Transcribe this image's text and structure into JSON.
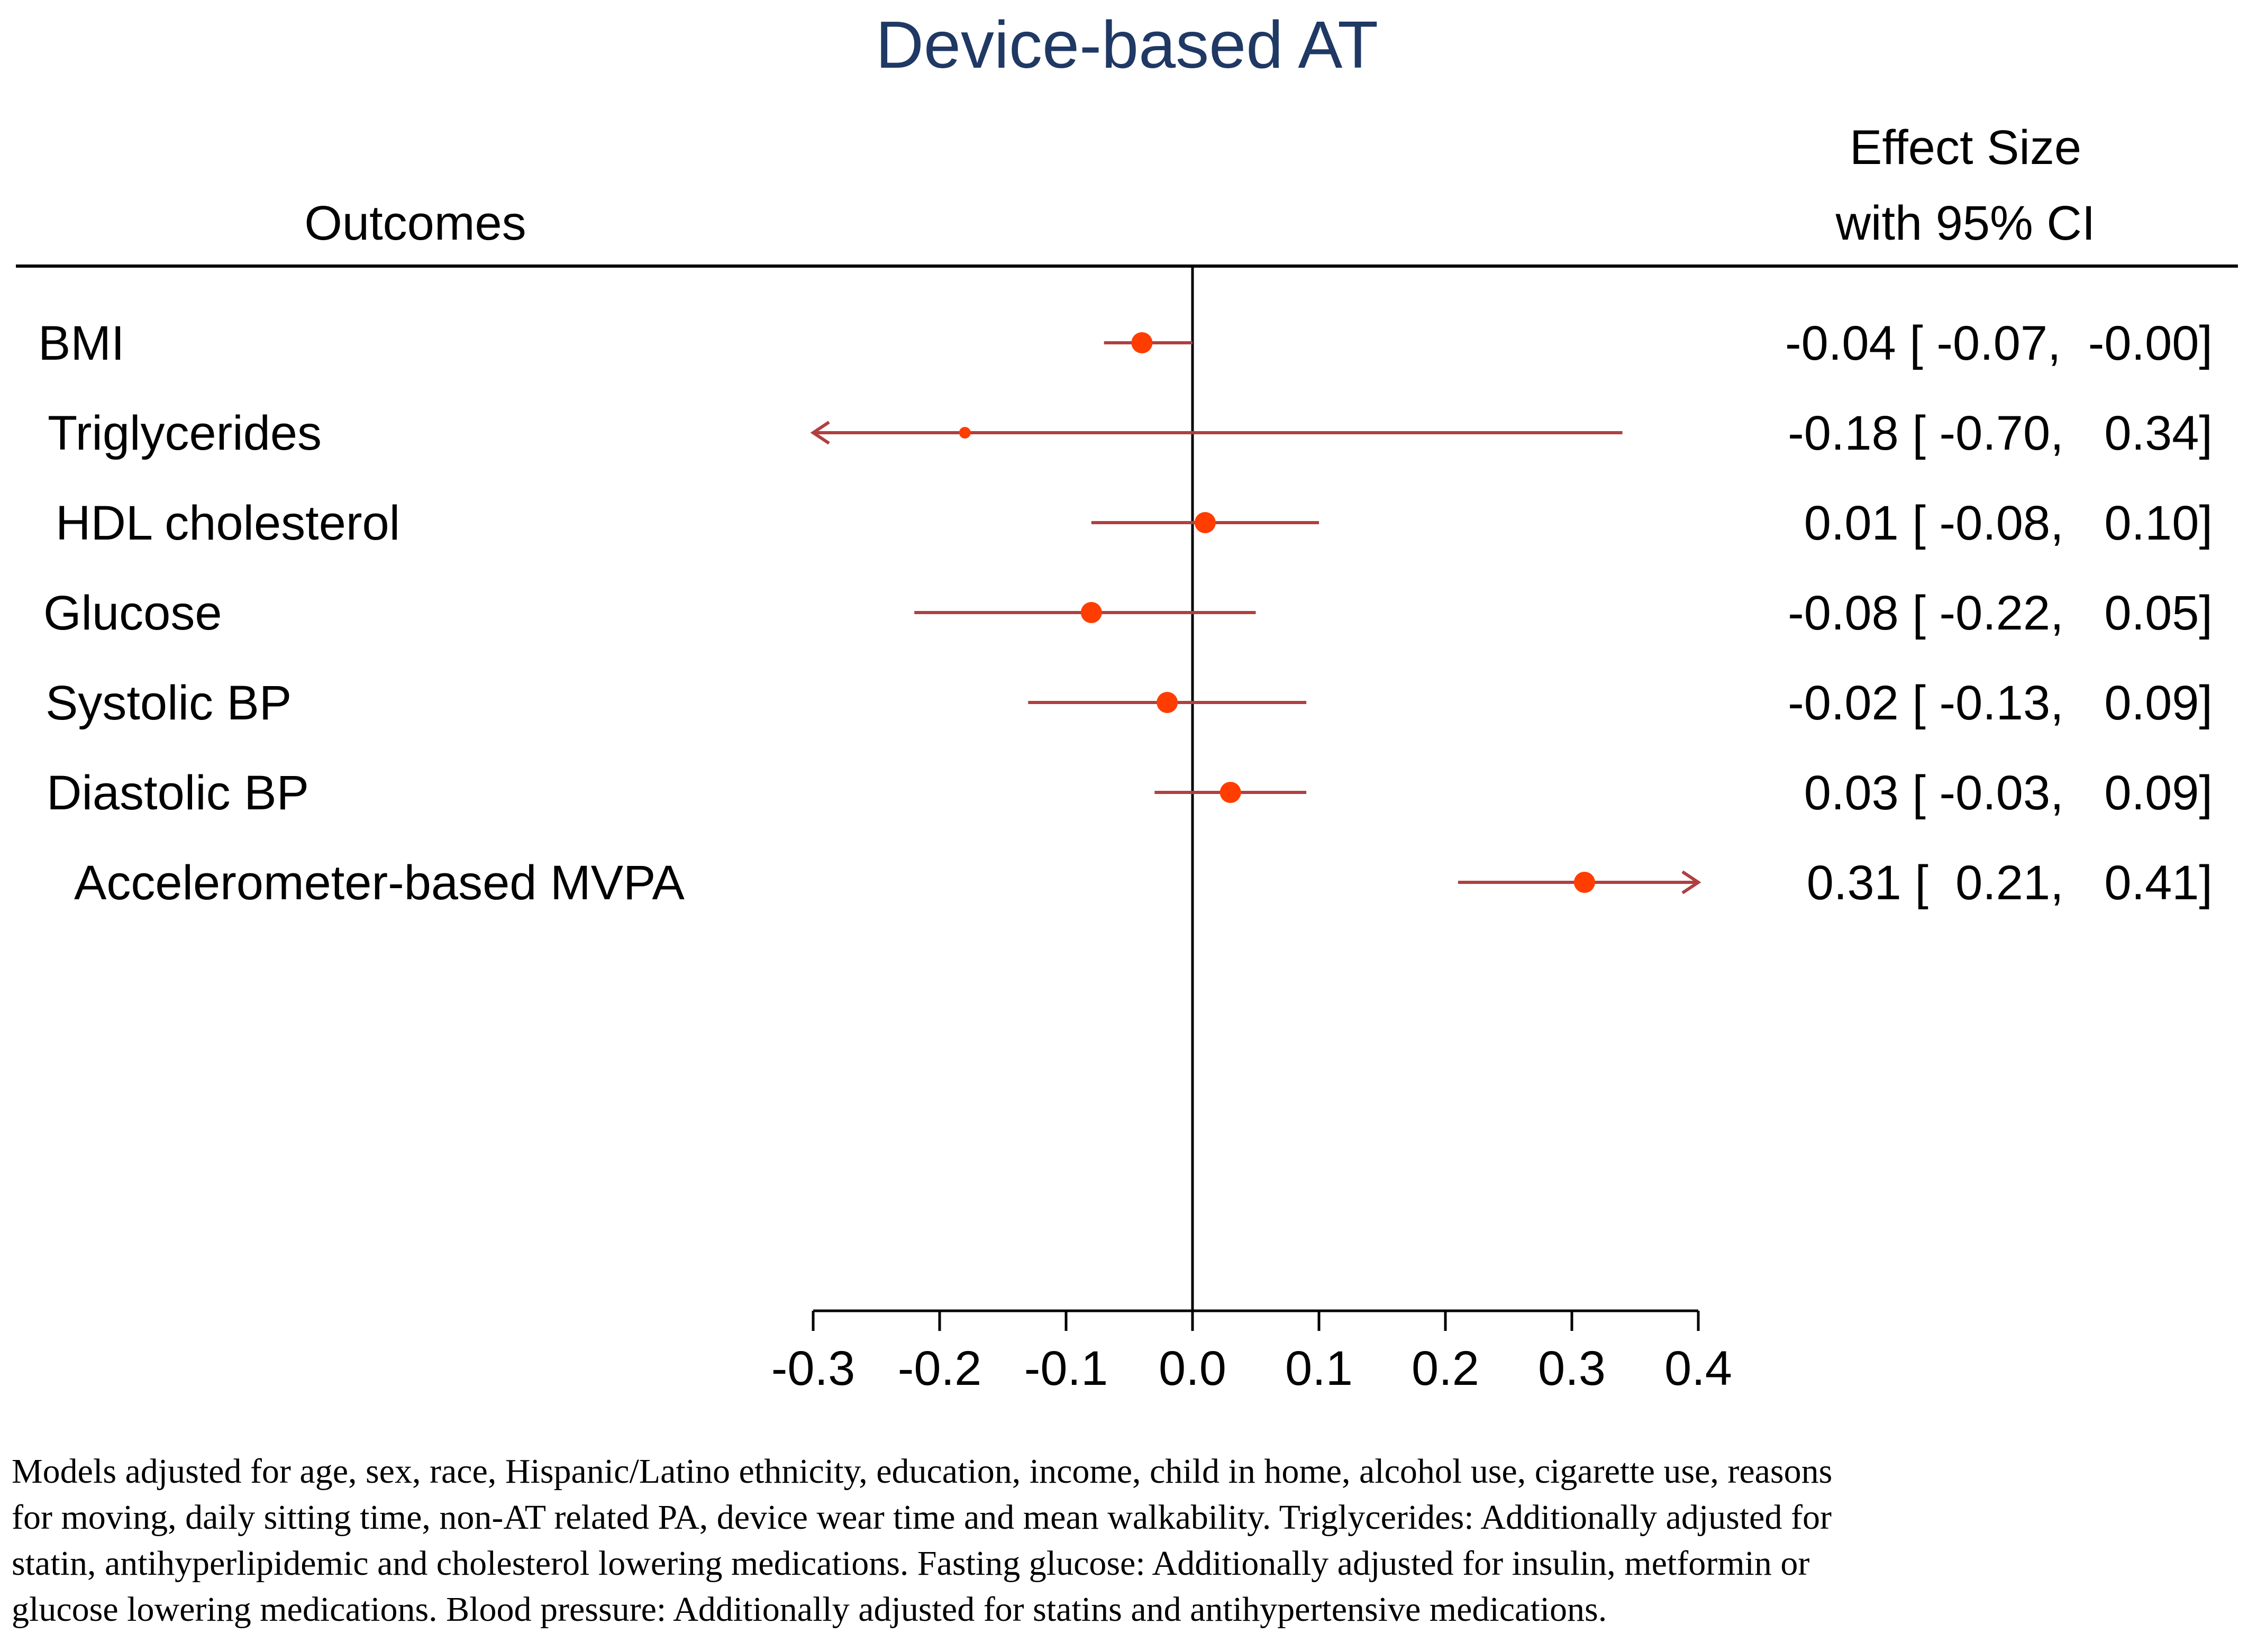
{
  "colors": {
    "title": "#1f3864",
    "ci_line": "#b04040",
    "point": "#ff3d00",
    "axis": "#000000",
    "text": "#000000"
  },
  "chart_data": {
    "type": "forest",
    "title": "Device-based AT",
    "left_header": "Outcomes",
    "right_header": [
      "Effect Size",
      "with 95% CI"
    ],
    "xlim": [
      -0.3,
      0.4
    ],
    "xticks": [
      -0.3,
      -0.2,
      -0.1,
      0.0,
      0.1,
      0.2,
      0.3,
      0.4
    ],
    "xtick_labels": [
      "-0.3",
      "-0.2",
      "-0.1",
      "0.0",
      "0.1",
      "0.2",
      "0.3",
      "0.4"
    ],
    "reference_line": 0.0,
    "rows": [
      {
        "label": "BMI",
        "estimate": -0.04,
        "lower": -0.07,
        "upper": -0.0,
        "label_text": "-0.04 [ -0.07,  -0.00]",
        "point_size": "large",
        "arrow": "none"
      },
      {
        "label": "Triglycerides",
        "estimate": -0.18,
        "lower": -0.7,
        "upper": 0.34,
        "label_text": "-0.18 [ -0.70,   0.34]",
        "point_size": "small",
        "arrow": "left"
      },
      {
        "label": "HDL cholesterol",
        "estimate": 0.01,
        "lower": -0.08,
        "upper": 0.1,
        "label_text": "0.01 [ -0.08,   0.10]",
        "point_size": "large",
        "arrow": "none"
      },
      {
        "label": "Glucose",
        "estimate": -0.08,
        "lower": -0.22,
        "upper": 0.05,
        "label_text": "-0.08 [ -0.22,   0.05]",
        "point_size": "large",
        "arrow": "none"
      },
      {
        "label": "Systolic BP",
        "estimate": -0.02,
        "lower": -0.13,
        "upper": 0.09,
        "label_text": "-0.02 [ -0.13,   0.09]",
        "point_size": "large",
        "arrow": "none"
      },
      {
        "label": "Diastolic BP",
        "estimate": 0.03,
        "lower": -0.03,
        "upper": 0.09,
        "label_text": "0.03 [ -0.03,   0.09]",
        "point_size": "large",
        "arrow": "none"
      },
      {
        "label": "Accelerometer-based MVPA",
        "estimate": 0.31,
        "lower": 0.21,
        "upper": 0.41,
        "label_text": "0.31 [  0.21,   0.41]",
        "point_size": "large",
        "arrow": "right"
      }
    ]
  },
  "footnote": {
    "lines": [
      "Models adjusted for age, sex, race, Hispanic/Latino ethnicity, education, income, child in home, alcohol use, cigarette use, reasons",
      "for moving, daily sitting time, non-AT related PA, device wear time and mean walkability. Triglycerides: Additionally adjusted for",
      "statin, antihyperlipidemic and cholesterol lowering medications. Fasting glucose: Additionally adjusted for insulin, metformin or",
      "glucose lowering medications. Blood pressure: Additionally adjusted for statins and antihypertensive medications."
    ]
  }
}
